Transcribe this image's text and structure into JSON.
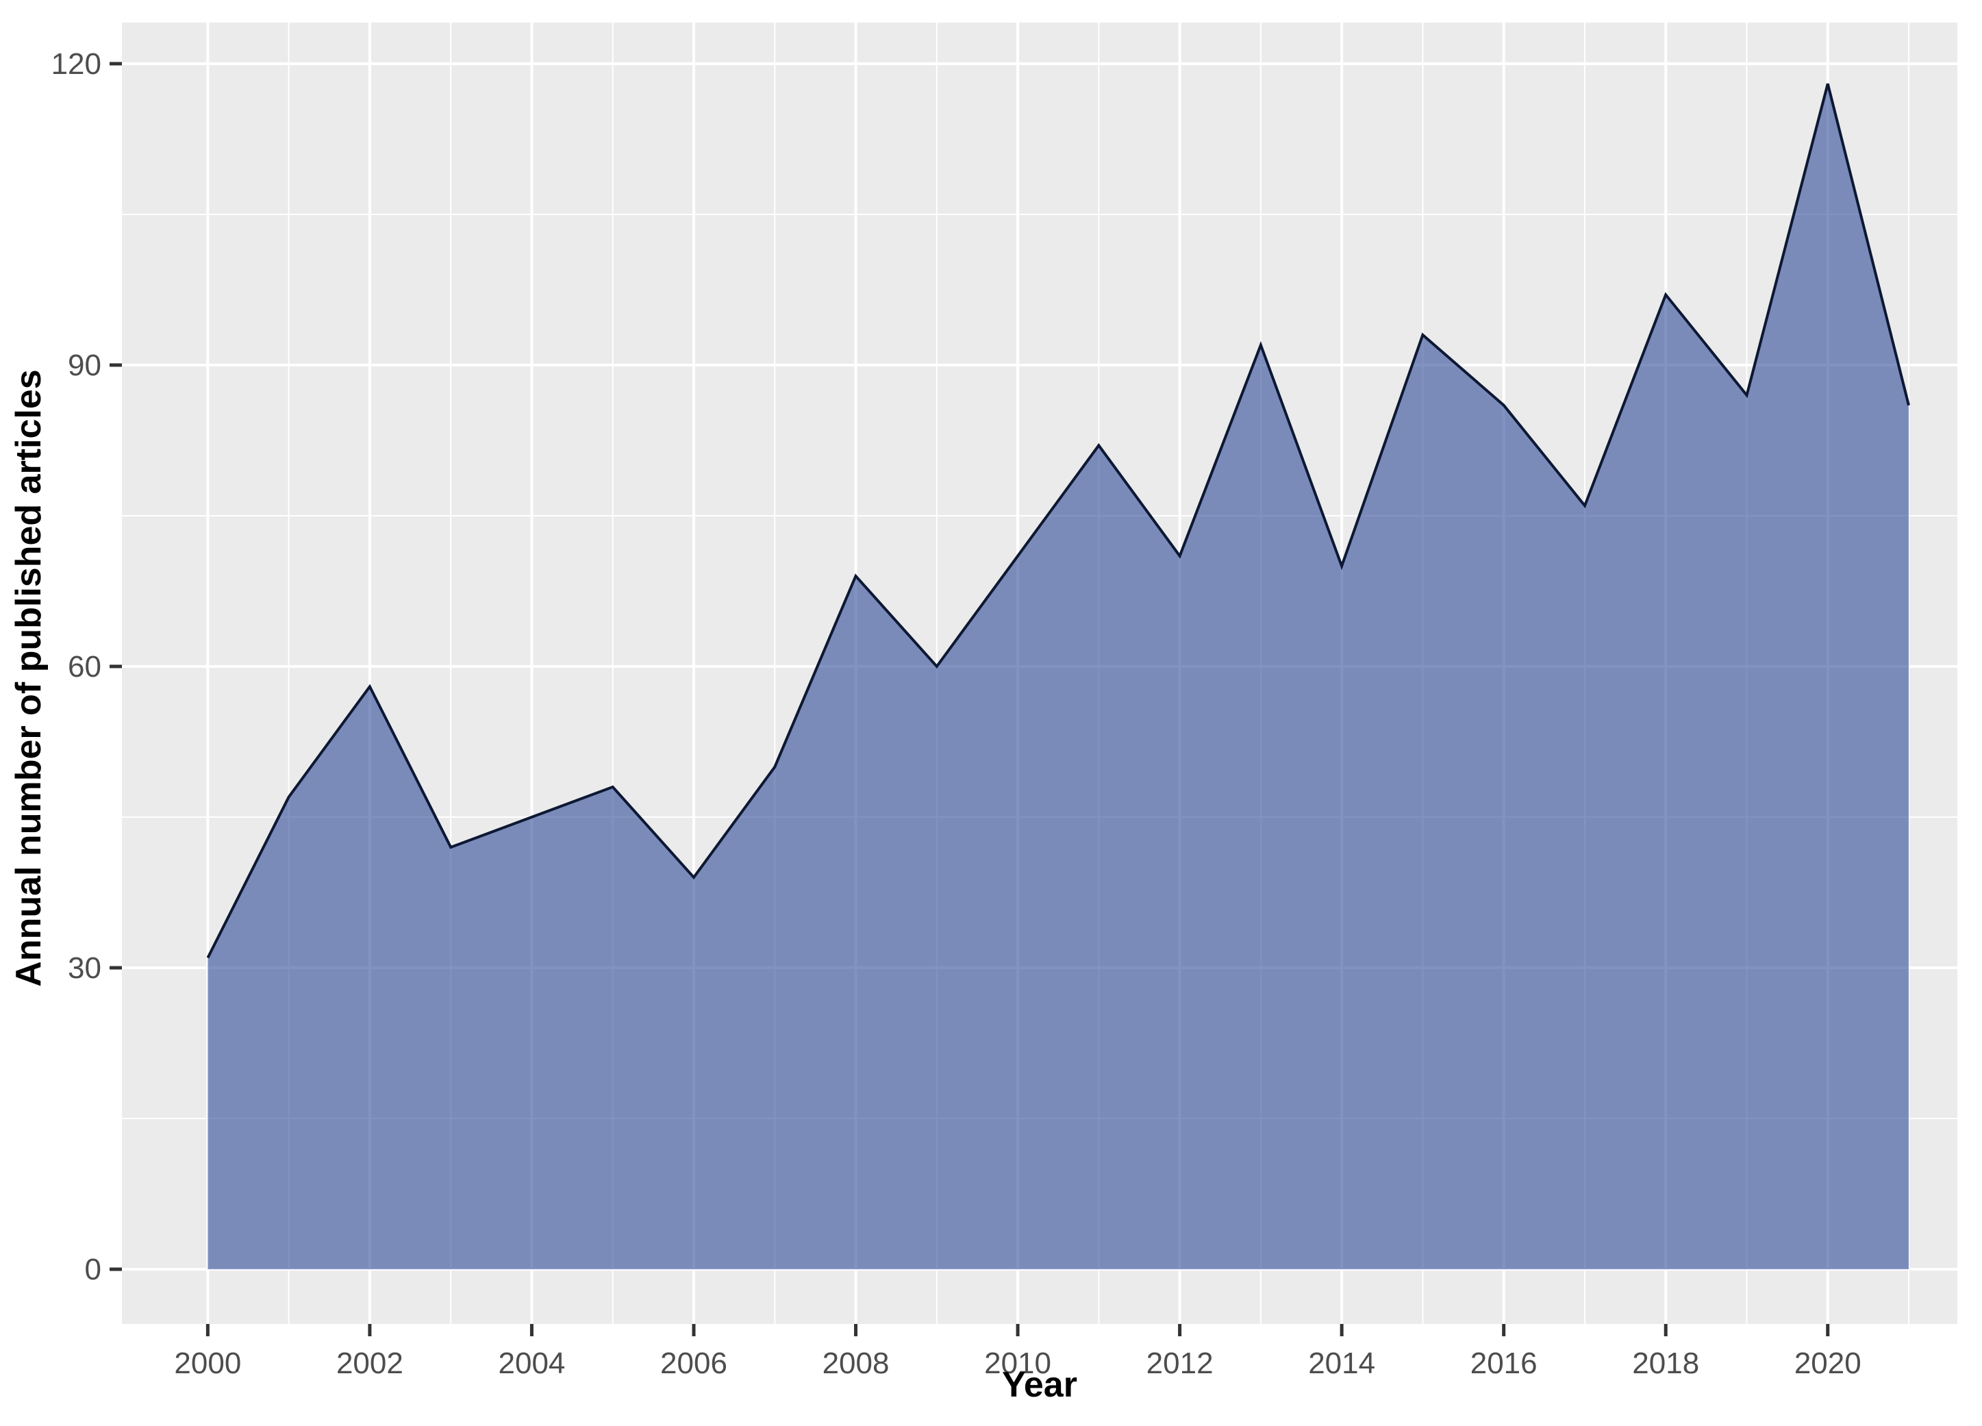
{
  "figure": {
    "background": "#FFFFFF",
    "panel_background": "#EBEBEB",
    "grid_color": "#FFFFFF",
    "tick_label_color": "#4D4D4D",
    "tick_mark_color": "#333333",
    "axis_title_color": "#000000"
  },
  "chart_data": {
    "type": "area",
    "title": "",
    "xlabel": "Year",
    "ylabel": "Annual number of published articles",
    "x": [
      2000,
      2001,
      2002,
      2003,
      2004,
      2005,
      2006,
      2007,
      2008,
      2009,
      2010,
      2011,
      2012,
      2013,
      2014,
      2015,
      2016,
      2017,
      2018,
      2019,
      2020,
      2021
    ],
    "values": [
      31,
      47,
      58,
      42,
      45,
      48,
      39,
      50,
      69,
      60,
      71,
      82,
      71,
      92,
      70,
      93,
      86,
      76,
      97,
      87,
      118,
      86
    ],
    "series_name": "Annual number of published articles",
    "x_tick_labels": [
      "2000",
      "2002",
      "2004",
      "2006",
      "2008",
      "2010",
      "2012",
      "2014",
      "2016",
      "2018",
      "2020"
    ],
    "x_major_ticks": [
      2000,
      2002,
      2004,
      2006,
      2008,
      2010,
      2012,
      2014,
      2016,
      2018,
      2020
    ],
    "x_minor_ticks": [
      2001,
      2003,
      2005,
      2007,
      2009,
      2011,
      2013,
      2015,
      2017,
      2019,
      2021
    ],
    "y_tick_labels": [
      "0",
      "30",
      "60",
      "90",
      "120"
    ],
    "y_major_ticks": [
      0,
      30,
      60,
      90,
      120
    ],
    "y_minor_ticks": [
      15,
      45,
      75,
      105
    ],
    "x_range": [
      1998.94,
      2021.6
    ],
    "y_range": [
      -5.45,
      124.09
    ],
    "grid": true,
    "legend": "none",
    "fill_color": "#35509C",
    "fill_opacity": 0.62,
    "line_color": "#0D1833"
  }
}
